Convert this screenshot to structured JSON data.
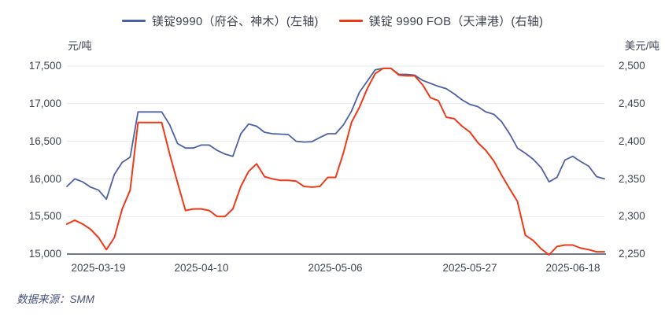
{
  "legend": [
    {
      "label": "镁锭9990（府谷、神木）(左轴)",
      "color": "#4d61a6"
    },
    {
      "label": "镁锭 9990 FOB（天津港）(右轴)",
      "color": "#ee3a17"
    }
  ],
  "axes": {
    "left_unit": "元/吨",
    "right_unit": "美元/吨",
    "left_ticks": [
      "17,500",
      "17,000",
      "16,500",
      "16,000",
      "15,500",
      "15,000"
    ],
    "right_ticks": [
      "2,500",
      "2,450",
      "2,400",
      "2,350",
      "2,300",
      "2,250"
    ],
    "x_ticks": [
      "2025-03-19",
      "2025-04-10",
      "2025-05-06",
      "2025-05-27",
      "2025-06-18"
    ]
  },
  "source_note": "数据来源：SMM",
  "chart_data": {
    "type": "line",
    "title": "",
    "n_points": 69,
    "x_tick_labels": [
      "2025-03-19",
      "2025-04-10",
      "2025-05-06",
      "2025-05-27",
      "2025-06-18"
    ],
    "x_tick_indices": [
      4,
      17,
      34,
      51,
      64
    ],
    "left_axis": {
      "label": "元/吨",
      "min": 15000,
      "max": 17500,
      "step": 500
    },
    "right_axis": {
      "label": "美元/吨",
      "min": 2250,
      "max": 2500,
      "step": 50
    },
    "grid": true,
    "legend_position": "top",
    "series": [
      {
        "name": "镁锭9990（府谷、神木）(左轴)",
        "axis": "left",
        "color": "#4d61a6",
        "unit": "元/吨",
        "values": [
          15900,
          16000,
          15960,
          15890,
          15850,
          15730,
          16060,
          16220,
          16290,
          16890,
          16890,
          16890,
          16890,
          16720,
          16470,
          16410,
          16410,
          16450,
          16450,
          16380,
          16330,
          16300,
          16600,
          16730,
          16700,
          16620,
          16600,
          16595,
          16590,
          16500,
          16490,
          16495,
          16550,
          16600,
          16600,
          16720,
          16900,
          17150,
          17300,
          17450,
          17470,
          17470,
          17390,
          17390,
          17380,
          17310,
          17270,
          17230,
          17200,
          17130,
          17050,
          16990,
          16960,
          16890,
          16860,
          16760,
          16600,
          16410,
          16340,
          16260,
          16150,
          15960,
          16020,
          16250,
          16300,
          16230,
          16170,
          16030,
          16000
        ]
      },
      {
        "name": "镁锭 9990 FOB（天津港）(右轴)",
        "axis": "right",
        "color": "#ee3a17",
        "unit": "美元/吨",
        "values": [
          2290,
          2295,
          2290,
          2283,
          2272,
          2256,
          2272,
          2310,
          2335,
          2425,
          2425,
          2425,
          2425,
          2383,
          2345,
          2308,
          2310,
          2310,
          2308,
          2300,
          2300,
          2310,
          2340,
          2360,
          2370,
          2353,
          2350,
          2348,
          2348,
          2347,
          2340,
          2339,
          2340,
          2352,
          2352,
          2385,
          2425,
          2445,
          2470,
          2490,
          2497,
          2497,
          2488,
          2487,
          2487,
          2475,
          2458,
          2454,
          2432,
          2430,
          2420,
          2412,
          2398,
          2388,
          2374,
          2355,
          2337,
          2320,
          2275,
          2268,
          2257,
          2249,
          2260,
          2262,
          2262,
          2258,
          2256,
          2253,
          2253
        ]
      }
    ]
  }
}
